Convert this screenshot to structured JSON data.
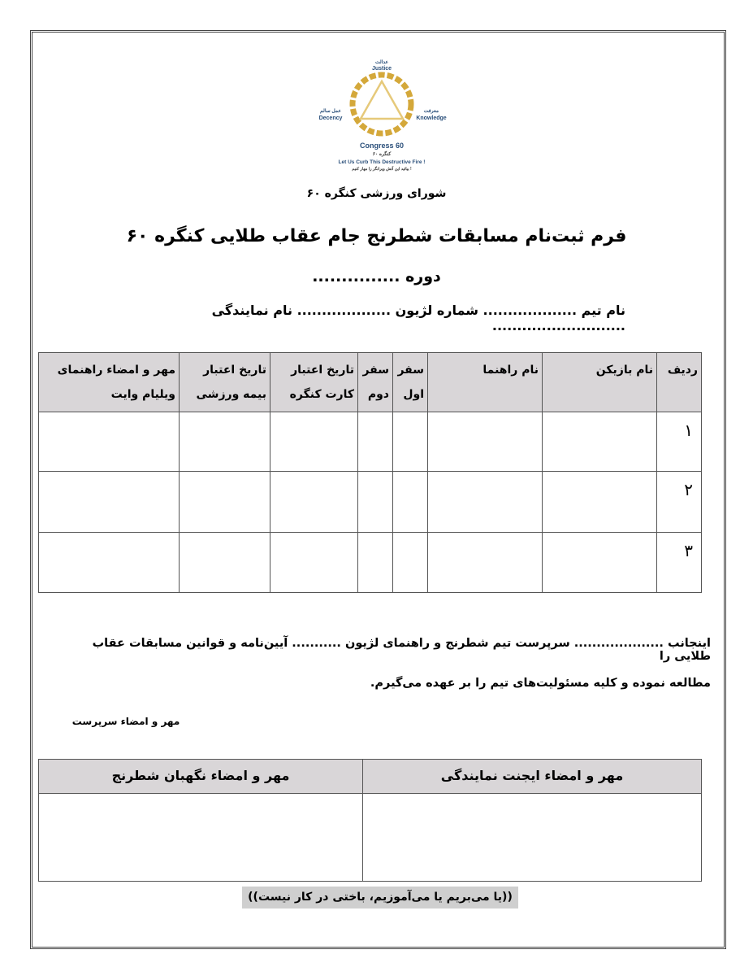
{
  "logo": {
    "top_fa": "عدالت",
    "top_en": "Justice",
    "left_fa": "عمل سالم",
    "left_en": "Decency",
    "right_fa": "معرفت",
    "right_en": "Knowledge",
    "name_en": "Congress 60",
    "name_fa": "کنگره ۶۰",
    "slogan_en": "Let Us Curb This Destructive Fire !",
    "slogan_fa": "بیائید این آتش ویرانگر را مهار کنیم !",
    "gold": "#d4a83a"
  },
  "header": {
    "council": "شورای ورزشی کنگره ۶۰",
    "title": "فرم ثبت‌نام مسابقات شطرنج جام عقاب طلایی کنگره ۶۰",
    "period": "دوره ...............",
    "info": "نام تیم ................... شماره لژیون ................... نام نمایندگی ..........................."
  },
  "table": {
    "headers": [
      "ردیف",
      "نام بازیکن",
      "نام راهنما",
      "سفر اول",
      "سفر دوم",
      "تاریخ اعتبار کارت کنگره",
      "تاریخ اعتبار بیمه ورزشی",
      "مهر و امضاء راهنمای ویلیام وایت"
    ],
    "rows": [
      "۱",
      "۲",
      "۳"
    ]
  },
  "declaration": {
    "line1": "اینجانب .................... سرپرست تیم شطرنج و راهنمای لژیون ........... آیین‌نامه و قوانین مسابقات عقاب طلایی را",
    "line2": "مطالعه نموده و کلیه مسئولیت‌های تیم را بر عهده می‌گیرم.",
    "signature": "مهر و امضاء سرپرست"
  },
  "signatures": {
    "agent": "مهر و امضاء ایجنت نمایندگی",
    "guardian": "مهر و امضاء نگهبان شطرنج"
  },
  "motto": "((یا می‌بریم یا می‌آموزیم، باختی در کار نیست))"
}
